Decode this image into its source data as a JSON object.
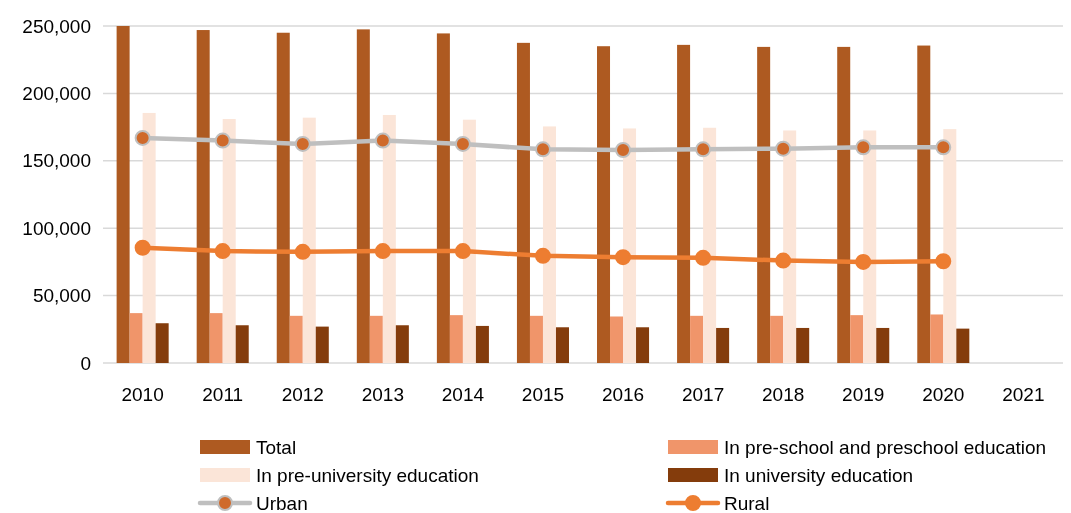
{
  "chart_data": {
    "type": "bar",
    "categories": [
      "2010",
      "2011",
      "2012",
      "2013",
      "2014",
      "2015",
      "2016",
      "2017",
      "2018",
      "2019",
      "2020",
      "2021"
    ],
    "series": [
      {
        "name": "Total",
        "color": "#ae5a21",
        "values": [
          250000,
          247000,
          245000,
          247500,
          244500,
          237500,
          235000,
          236000,
          234500,
          234500,
          235500,
          null
        ]
      },
      {
        "name": "In pre-school and preschool education",
        "color": "#f0956a",
        "values": [
          37000,
          37000,
          35000,
          35000,
          35500,
          35000,
          34500,
          35000,
          35000,
          35500,
          36000,
          null
        ]
      },
      {
        "name": "In pre-university education",
        "color": "#fbe5d8",
        "values": [
          185500,
          181000,
          182000,
          184000,
          180500,
          175500,
          174000,
          174500,
          172500,
          172500,
          173500,
          null
        ]
      },
      {
        "name": "In university education",
        "color": "#843c0c",
        "values": [
          29500,
          28000,
          27000,
          28000,
          27500,
          26500,
          26500,
          26000,
          26000,
          26000,
          25500,
          null
        ]
      },
      {
        "name": "Urban",
        "type": "line",
        "color": "#bfbfbf",
        "marker": "circle",
        "values": [
          167000,
          165000,
          162500,
          165000,
          162500,
          158500,
          158000,
          158500,
          159000,
          160000,
          160000,
          null
        ]
      },
      {
        "name": "Rural",
        "type": "line",
        "color": "#ed7d31",
        "marker": "circle",
        "values": [
          85500,
          83000,
          82500,
          83000,
          83000,
          79500,
          78500,
          78000,
          76000,
          75000,
          75500,
          null
        ]
      }
    ],
    "ylim": [
      0,
      250000
    ],
    "yticks": [
      {
        "value": 0,
        "label": "0"
      },
      {
        "value": 50000,
        "label": "50,000"
      },
      {
        "value": 100000,
        "label": "100,000"
      },
      {
        "value": 150000,
        "label": "150,000"
      },
      {
        "value": 200000,
        "label": "200,000"
      },
      {
        "value": 250000,
        "label": "250,000"
      }
    ],
    "grid": "y",
    "legend": "bottom"
  }
}
